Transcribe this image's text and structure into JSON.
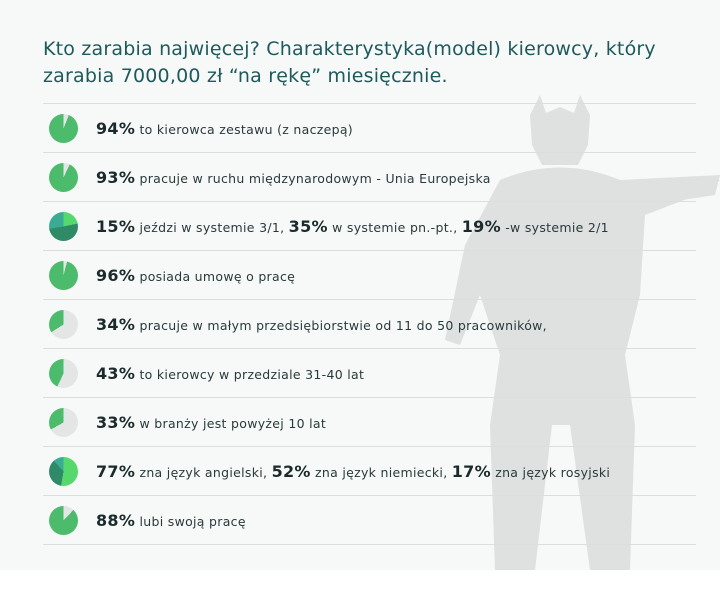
{
  "title": "Kto zarabia najwięcej? Charakterystyka(model) kierowcy, który zarabia 7000,00 zł “na rękę” miesięcznie.",
  "colors": {
    "title": "#1e5a5c",
    "pie_main": "#4cbb6c",
    "pie_rest": "#e4e6e6",
    "pie_multi": [
      "#55d86c",
      "#2f8a67",
      "#3aac94"
    ]
  },
  "rows": [
    {
      "pie": [
        94
      ],
      "segments": [
        {
          "bold": "94%",
          "text": " to kierowca zestawu (z naczepą)"
        }
      ]
    },
    {
      "pie": [
        93
      ],
      "segments": [
        {
          "bold": "93%",
          "text": " pracuje w ruchu międzynarodowym - Unia Europejska"
        }
      ]
    },
    {
      "pie": [
        15,
        35,
        19
      ],
      "segments": [
        {
          "bold": "15%",
          "text": " jeździ w systemie 3/1, "
        },
        {
          "bold": "35%",
          "text": " w systemie pn.-pt., "
        },
        {
          "bold": "19%",
          "text": " -w systemie 2/1"
        }
      ]
    },
    {
      "pie": [
        96
      ],
      "segments": [
        {
          "bold": "96%",
          "text": " posiada umowę o pracę"
        }
      ]
    },
    {
      "pie": [
        34
      ],
      "segments": [
        {
          "bold": "34%",
          "text": " pracuje w małym przedsiębiorstwie od 11 do 50 pracowników,"
        }
      ]
    },
    {
      "pie": [
        43
      ],
      "segments": [
        {
          "bold": "43%",
          "text": " to kierowcy w przedziale 31-40 lat"
        }
      ]
    },
    {
      "pie": [
        33
      ],
      "segments": [
        {
          "bold": "33%",
          "text": " w branży jest powyżej 10 lat"
        }
      ]
    },
    {
      "pie": [
        77,
        52,
        17
      ],
      "segments": [
        {
          "bold": "77%",
          "text": " zna język angielski, "
        },
        {
          "bold": "52%",
          "text": " zna język niemiecki, "
        },
        {
          "bold": "17%",
          "text": " zna język rosyjski"
        }
      ]
    },
    {
      "pie": [
        88
      ],
      "segments": [
        {
          "bold": "88%",
          "text": " lubi swoją pracę"
        }
      ]
    }
  ]
}
